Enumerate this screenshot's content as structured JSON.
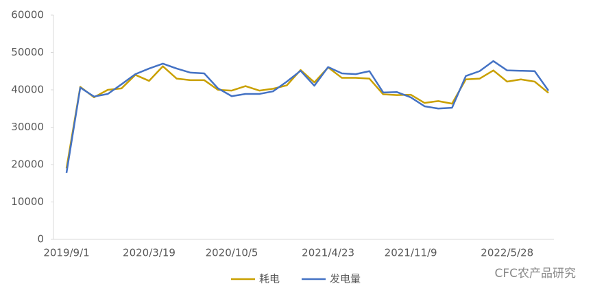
{
  "chart_data": {
    "type": "line",
    "categories": [
      "2019/9/1",
      null,
      null,
      null,
      null,
      null,
      "2020/3/19",
      null,
      null,
      null,
      null,
      null,
      "2020/10/5",
      null,
      null,
      null,
      null,
      null,
      null,
      "2021/4/23",
      null,
      null,
      null,
      null,
      null,
      "2021/11/9",
      null,
      null,
      null,
      null,
      null,
      null,
      "2022/5/28",
      null,
      null,
      null
    ],
    "series": [
      {
        "name": "耗电",
        "color": "#c9a000",
        "values": [
          19000,
          40800,
          38000,
          40000,
          40400,
          44000,
          42400,
          46300,
          43000,
          42600,
          42600,
          40000,
          39800,
          41000,
          39800,
          40300,
          41200,
          45300,
          42000,
          46000,
          43200,
          43200,
          43000,
          38800,
          38600,
          38700,
          36500,
          37000,
          36300,
          42800,
          43000,
          45200,
          42200,
          42800,
          42200,
          39200
        ]
      },
      {
        "name": "发电量",
        "color": "#4472c4",
        "values": [
          17800,
          40600,
          38200,
          38900,
          41500,
          44200,
          45700,
          47000,
          45700,
          44600,
          44400,
          40400,
          38300,
          38900,
          38900,
          39600,
          42200,
          45100,
          41100,
          46100,
          44400,
          44200,
          45000,
          39300,
          39400,
          38000,
          35600,
          35000,
          35200,
          43700,
          45000,
          47700,
          45200,
          45100,
          45000,
          39800
        ]
      }
    ],
    "ylim": [
      0,
      60000
    ],
    "yticks": [
      0,
      10000,
      20000,
      30000,
      40000,
      50000,
      60000
    ],
    "grid": false,
    "legend": "bottom",
    "annotation": "CFC农产品研究"
  }
}
